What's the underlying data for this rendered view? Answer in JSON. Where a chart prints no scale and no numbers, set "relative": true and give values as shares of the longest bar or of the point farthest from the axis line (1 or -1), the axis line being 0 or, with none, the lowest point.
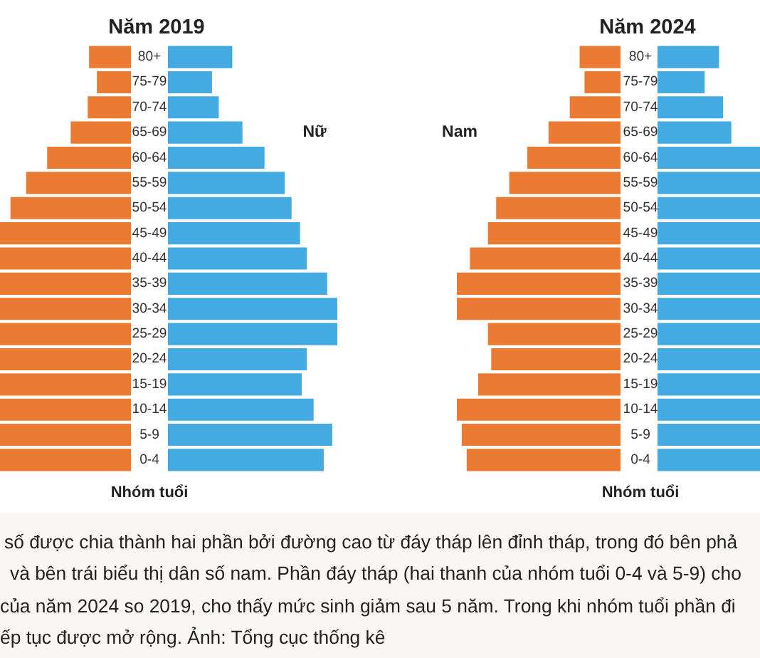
{
  "chart_data": [
    {
      "type": "bar",
      "title": "Năm 2019",
      "ylabel": "Nhóm tuổi",
      "orientation": "horizontal",
      "relative": true,
      "categories": [
        "80+",
        "75-79",
        "70-74",
        "65-69",
        "60-64",
        "55-59",
        "50-54",
        "45-49",
        "40-44",
        "35-39",
        "30-34",
        "25-29",
        "20-24",
        "15-19",
        "10-14",
        "5-9",
        "0-4"
      ],
      "series": [
        {
          "color": "#eb7a32",
          "values": [
            -0.32,
            -0.26,
            -0.33,
            -0.46,
            -0.64,
            -0.8,
            -0.92,
            -1,
            -1,
            -1,
            -1,
            -1,
            -1,
            -1,
            -1,
            -1,
            -1
          ]
        }
      ],
      "annotations": [
        "số được chia thành hai phần bởi đường cao từ đáy tháp lên đỉnh tháp, trong đó bên phả",
        "và bên trái biểu thị dân số nam. Phần đáy tháp (hai thanh của nhóm tuổi 0-4 và 5-9) cho",
        "của năm 2024 so 2019, cho thấy mức sinh giảm sau 5 năm. Trong khi nhóm tuổi phần đi",
        "ếp tục được mở rộng. Ảnh: Tổng cục thống kê"
      ]
    },
    {
      "type": "bar",
      "orientation": "horizontal",
      "relative": true,
      "categories": [
        null,
        null,
        null,
        null,
        null,
        null,
        null,
        null,
        null,
        null,
        null,
        null,
        null,
        null,
        null,
        null,
        null
      ],
      "series": [
        {
          "name": "Nữ",
          "color": "#43aae2",
          "values": [
            0.38,
            0.26,
            0.3,
            0.44,
            0.57,
            0.69,
            0.73,
            0.78,
            0.82,
            0.94,
            1,
            1,
            0.82,
            0.79,
            0.86,
            0.97,
            0.92
          ]
        }
      ]
    },
    {
      "type": "bar",
      "orientation": "horizontal",
      "relative": true,
      "categories": [
        null,
        null,
        null,
        null,
        null,
        null,
        null,
        null,
        null,
        null,
        null,
        null,
        null,
        null,
        null,
        null,
        null
      ],
      "series": [
        {
          "name": "Nam",
          "color": "#eb7a32",
          "values": [
            -0.25,
            -0.22,
            -0.31,
            -0.44,
            -0.57,
            -0.68,
            -0.76,
            -0.81,
            -0.92,
            -1,
            -1,
            -0.81,
            -0.79,
            -0.87,
            -1,
            -0.97,
            -0.94
          ]
        }
      ]
    },
    {
      "type": "bar",
      "title": "Năm 2024",
      "ylabel": "Nhóm tuổi",
      "orientation": "horizontal",
      "relative": true,
      "categories": [
        "80+",
        "75-79",
        "70-74",
        "65-69",
        "60-64",
        "55-59",
        "50-54",
        "45-49",
        "40-44",
        "35-39",
        "30-34",
        "25-29",
        "20-24",
        "15-19",
        "10-14",
        "5-9",
        "0-4"
      ],
      "series": [
        {
          "color": "#43aae2",
          "values": [
            0.6,
            0.46,
            0.64,
            0.72,
            1,
            1,
            1,
            1,
            1,
            1,
            1,
            1,
            1,
            1,
            1,
            1,
            1
          ]
        }
      ]
    }
  ]
}
